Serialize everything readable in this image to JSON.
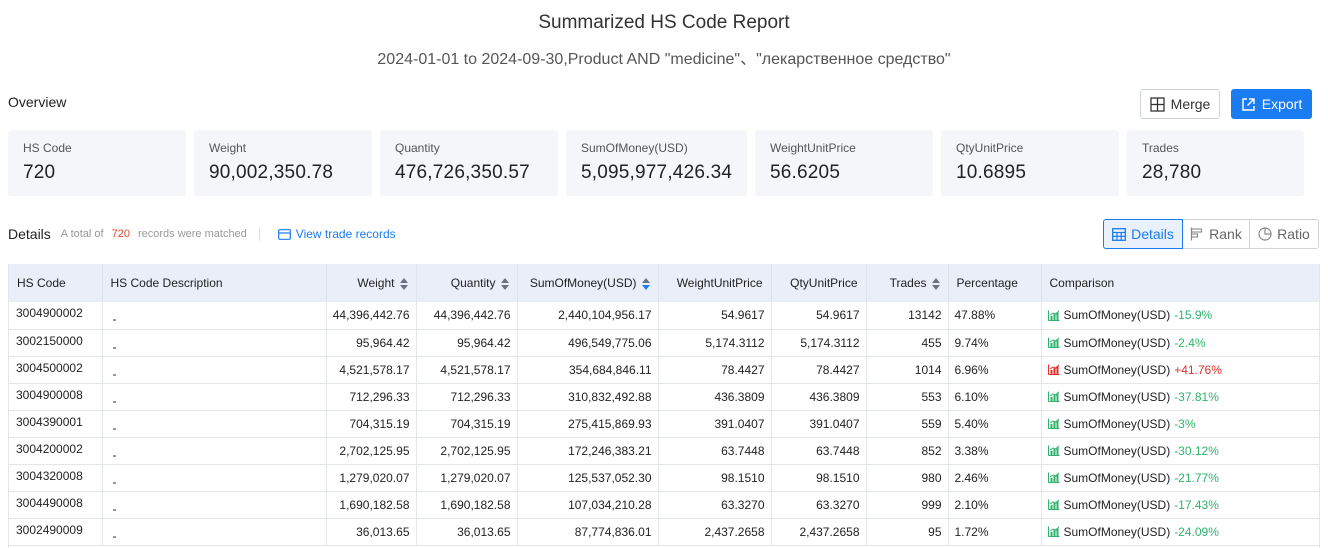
{
  "report": {
    "title": "Summarized HS Code Report",
    "subtitle": "2024-01-01 to 2024-09-30,Product AND \"medicine\"、\"лекарственное средство\""
  },
  "overview": {
    "label": "Overview",
    "merge_label": "Merge",
    "export_label": "Export",
    "cards": [
      {
        "label": "HS Code",
        "value": "720"
      },
      {
        "label": "Weight",
        "value": "90,002,350.78"
      },
      {
        "label": "Quantity",
        "value": "476,726,350.57"
      },
      {
        "label": "SumOfMoney(USD)",
        "value": "5,095,977,426.34"
      },
      {
        "label": "WeightUnitPrice",
        "value": "56.6205"
      },
      {
        "label": "QtyUnitPrice",
        "value": "10.6895"
      },
      {
        "label": "Trades",
        "value": "28,780"
      }
    ]
  },
  "details": {
    "title": "Details",
    "note_prefix": "A total of",
    "count": "720",
    "note_suffix": "records were matched",
    "view_records_label": "View trade records",
    "tabs": [
      {
        "label": "Details",
        "icon": "table-icon",
        "active": true
      },
      {
        "label": "Rank",
        "icon": "rank-bars-icon",
        "active": false
      },
      {
        "label": "Ratio",
        "icon": "pie-chart-icon",
        "active": false
      }
    ]
  },
  "table": {
    "columns": [
      "HS Code",
      "HS Code Description",
      "Weight",
      "Quantity",
      "SumOfMoney(USD)",
      "WeightUnitPrice",
      "QtyUnitPrice",
      "Trades",
      "Percentage",
      "Comparison"
    ],
    "rows": [
      {
        "code": "3004900002",
        "desc": "-",
        "weight": "44,396,442.76",
        "quantity": "44,396,442.76",
        "money": "2,440,104,956.17",
        "wup": "54.9617",
        "qup": "54.9617",
        "trades": "13142",
        "pct": "47.88%",
        "cmp_label": "SumOfMoney(USD)",
        "cmp_value": "-15.9%",
        "trend": "down"
      },
      {
        "code": "3002150000",
        "desc": "-",
        "weight": "95,964.42",
        "quantity": "95,964.42",
        "money": "496,549,775.06",
        "wup": "5,174.3112",
        "qup": "5,174.3112",
        "trades": "455",
        "pct": "9.74%",
        "cmp_label": "SumOfMoney(USD)",
        "cmp_value": "-2.4%",
        "trend": "down"
      },
      {
        "code": "3004500002",
        "desc": "-",
        "weight": "4,521,578.17",
        "quantity": "4,521,578.17",
        "money": "354,684,846.11",
        "wup": "78.4427",
        "qup": "78.4427",
        "trades": "1014",
        "pct": "6.96%",
        "cmp_label": "SumOfMoney(USD)",
        "cmp_value": "+41.76%",
        "trend": "up"
      },
      {
        "code": "3004900008",
        "desc": "-",
        "weight": "712,296.33",
        "quantity": "712,296.33",
        "money": "310,832,492.88",
        "wup": "436.3809",
        "qup": "436.3809",
        "trades": "553",
        "pct": "6.10%",
        "cmp_label": "SumOfMoney(USD)",
        "cmp_value": "-37.81%",
        "trend": "down"
      },
      {
        "code": "3004390001",
        "desc": "-",
        "weight": "704,315.19",
        "quantity": "704,315.19",
        "money": "275,415,869.93",
        "wup": "391.0407",
        "qup": "391.0407",
        "trades": "559",
        "pct": "5.40%",
        "cmp_label": "SumOfMoney(USD)",
        "cmp_value": "-3%",
        "trend": "down"
      },
      {
        "code": "3004200002",
        "desc": "-",
        "weight": "2,702,125.95",
        "quantity": "2,702,125.95",
        "money": "172,246,383.21",
        "wup": "63.7448",
        "qup": "63.7448",
        "trades": "852",
        "pct": "3.38%",
        "cmp_label": "SumOfMoney(USD)",
        "cmp_value": "-30.12%",
        "trend": "down"
      },
      {
        "code": "3004320008",
        "desc": "-",
        "weight": "1,279,020.07",
        "quantity": "1,279,020.07",
        "money": "125,537,052.30",
        "wup": "98.1510",
        "qup": "98.1510",
        "trades": "980",
        "pct": "2.46%",
        "cmp_label": "SumOfMoney(USD)",
        "cmp_value": "-21.77%",
        "trend": "down"
      },
      {
        "code": "3004490008",
        "desc": "-",
        "weight": "1,690,182.58",
        "quantity": "1,690,182.58",
        "money": "107,034,210.28",
        "wup": "63.3270",
        "qup": "63.3270",
        "trades": "999",
        "pct": "2.10%",
        "cmp_label": "SumOfMoney(USD)",
        "cmp_value": "-17.43%",
        "trend": "down"
      },
      {
        "code": "3002490009",
        "desc": "-",
        "weight": "36,013.65",
        "quantity": "36,013.65",
        "money": "87,774,836.01",
        "wup": "2,437.2658",
        "qup": "2,437.2658",
        "trades": "95",
        "pct": "1.72%",
        "cmp_label": "SumOfMoney(USD)",
        "cmp_value": "-24.09%",
        "trend": "down"
      }
    ]
  },
  "colors": {
    "accent": "#1a7cf0",
    "trend_down": "#2fb36c",
    "trend_up": "#e0302a",
    "count": "#e0492c"
  }
}
